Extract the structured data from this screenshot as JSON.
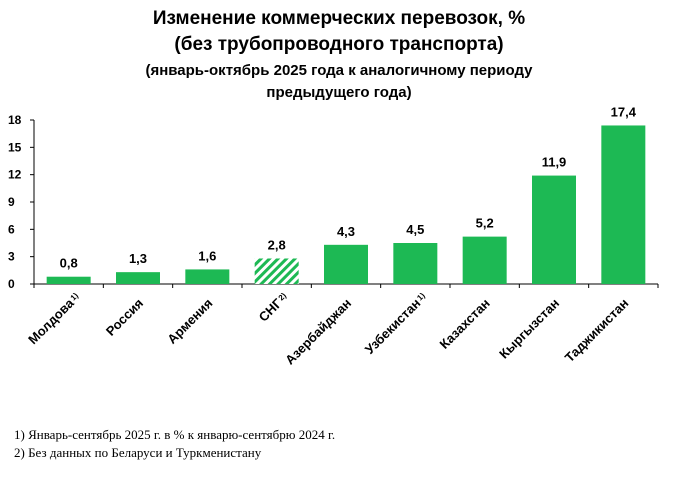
{
  "title": {
    "line1": "Изменение коммерческих перевозок, %",
    "line2": "(без трубопроводного транспорта)",
    "line3": "(январь-октябрь 2025 года к аналогичному периоду",
    "line4": "предыдущего года)"
  },
  "chart_data": {
    "type": "bar",
    "title": "Изменение коммерческих перевозок, % (без трубопроводного транспорта)",
    "categories": [
      "Молдова",
      "Россия",
      "Армения",
      "СНГ",
      "Азербайджан",
      "Узбекистан",
      "Казахстан",
      "Кыргызстан",
      "Таджикистан"
    ],
    "superscripts": [
      "1)",
      "",
      "",
      "2)",
      "",
      "1)",
      "",
      "",
      ""
    ],
    "values": [
      0.8,
      1.3,
      1.6,
      2.8,
      4.3,
      4.5,
      5.2,
      11.9,
      17.4
    ],
    "value_labels": [
      "0,8",
      "1,3",
      "1,6",
      "2,8",
      "4,3",
      "4,5",
      "5,2",
      "11,9",
      "17,4"
    ],
    "ylim": [
      0,
      18
    ],
    "yticks": [
      0,
      3,
      6,
      9,
      12,
      15,
      18
    ],
    "xlabel": "",
    "ylabel": "",
    "bar_color": "#1db954",
    "highlight_category": "СНГ",
    "highlight_style": "hatched"
  },
  "footnotes": [
    "1) Январь-сентябрь 2025 г. в % к январю-сентябрю 2024 г.",
    "2)  Без данных по Беларуси и Туркменистану"
  ]
}
